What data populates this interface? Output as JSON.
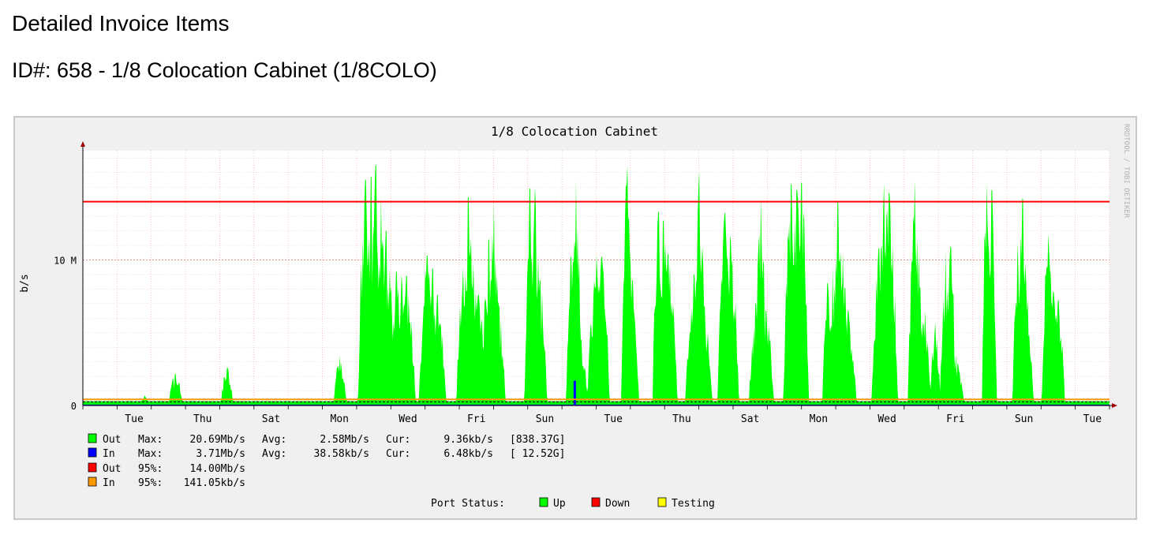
{
  "page": {
    "heading": "Detailed Invoice Items",
    "subheading": "ID#: 658 - 1/8 Colocation Cabinet (1/8COLO)"
  },
  "chart_data": {
    "type": "area",
    "title": "1/8 Colocation Cabinet",
    "ylabel": "b/s",
    "watermark": "RRDTOOL / TOBI OETIKER",
    "y_unit_scale": "M = 1,000,000 b/s",
    "ylim": [
      0,
      17500000
    ],
    "y_ticks": [
      {
        "value": 0,
        "label": "0"
      },
      {
        "value": 10000000,
        "label": "10 M"
      }
    ],
    "x_ticks": [
      "Tue",
      "Thu",
      "Sat",
      "Mon",
      "Wed",
      "Fri",
      "Sun",
      "Tue",
      "Thu",
      "Sat",
      "Mon",
      "Wed",
      "Fri",
      "Sun",
      "Tue"
    ],
    "x_day_count": 30,
    "grid": true,
    "series": [
      {
        "name": "Out",
        "kind": "area",
        "color": "#00ff00",
        "baseline": 300000,
        "peaks": [
          [
            0.005,
            0.2
          ],
          [
            0.06,
            0.7
          ],
          [
            0.09,
            2.2
          ],
          [
            0.14,
            2.6
          ],
          [
            0.25,
            3.4
          ],
          [
            0.275,
            15.5
          ],
          [
            0.28,
            15.7
          ],
          [
            0.285,
            16.5
          ],
          [
            0.29,
            14.4
          ],
          [
            0.295,
            12.0
          ],
          [
            0.305,
            9.2
          ],
          [
            0.31,
            9.0
          ],
          [
            0.315,
            8.9
          ],
          [
            0.335,
            10.3
          ],
          [
            0.34,
            9.4
          ],
          [
            0.345,
            7.6
          ],
          [
            0.37,
            9.5
          ],
          [
            0.375,
            14.3
          ],
          [
            0.38,
            9.8
          ],
          [
            0.385,
            7.6
          ],
          [
            0.395,
            11.4
          ],
          [
            0.4,
            14.0
          ],
          [
            0.405,
            6.7
          ],
          [
            0.435,
            14.9
          ],
          [
            0.44,
            15.0
          ],
          [
            0.445,
            8.6
          ],
          [
            0.475,
            10.2
          ],
          [
            0.48,
            15.4
          ],
          [
            0.485,
            4.5
          ],
          [
            0.5,
            10.3
          ],
          [
            0.505,
            10.2
          ],
          [
            0.53,
            16.5
          ],
          [
            0.535,
            8.6
          ],
          [
            0.56,
            13.3
          ],
          [
            0.565,
            12.7
          ],
          [
            0.57,
            10.4
          ],
          [
            0.595,
            9.0
          ],
          [
            0.6,
            16.1
          ],
          [
            0.605,
            6.8
          ],
          [
            0.625,
            13.2
          ],
          [
            0.63,
            11.7
          ],
          [
            0.655,
            7.0
          ],
          [
            0.66,
            14.3
          ],
          [
            0.665,
            6.5
          ],
          [
            0.69,
            15.2
          ],
          [
            0.695,
            14.8
          ],
          [
            0.7,
            15.3
          ],
          [
            0.725,
            8.4
          ],
          [
            0.73,
            9.5
          ],
          [
            0.735,
            14.0
          ],
          [
            0.74,
            10.5
          ],
          [
            0.745,
            6.5
          ],
          [
            0.775,
            10.8
          ],
          [
            0.78,
            15.3
          ],
          [
            0.785,
            14.6
          ],
          [
            0.81,
            15.5
          ],
          [
            0.815,
            8.1
          ],
          [
            0.82,
            6.5
          ],
          [
            0.83,
            5.7
          ],
          [
            0.84,
            10.6
          ],
          [
            0.845,
            10.9
          ],
          [
            0.85,
            3.5
          ],
          [
            0.88,
            15.3
          ],
          [
            0.885,
            14.8
          ],
          [
            0.91,
            11.2
          ],
          [
            0.915,
            14.2
          ],
          [
            0.92,
            7.3
          ],
          [
            0.94,
            11.8
          ],
          [
            0.945,
            7.8
          ],
          [
            0.95,
            7.3
          ]
        ],
        "legend_stats": {
          "max": "20.69Mb/s",
          "avg": "2.58Mb/s",
          "cur": "9.36kb/s",
          "total": "[838.37G]"
        }
      },
      {
        "name": "In",
        "kind": "area",
        "color": "#0000ff",
        "legend_stats": {
          "max": "3.71Mb/s",
          "avg": "38.58kb/s",
          "cur": "6.48kb/s",
          "total": "[ 12.52G]"
        }
      },
      {
        "name": "Out",
        "kind": "95th-percentile",
        "color": "#ff0000",
        "value": 14000000,
        "label": "14.00Mb/s"
      },
      {
        "name": "In",
        "kind": "95th-percentile",
        "color": "#ff9900",
        "value": 141050,
        "label": "141.05kb/s"
      }
    ],
    "legend": {
      "out_label": "Out",
      "in_label": "In",
      "max_label": "Max:",
      "avg_label": "Avg:",
      "cur_label": "Cur:",
      "pct_label": "95%:",
      "rows": [
        {
          "name": "Out",
          "color": "#00ff00",
          "max": "20.69Mb/s",
          "avg": "2.58Mb/s",
          "cur": "9.36kb/s",
          "total": "[838.37G]"
        },
        {
          "name": "In",
          "color": "#0000ff",
          "max": "3.71Mb/s",
          "avg": "38.58kb/s",
          "cur": "6.48kb/s",
          "total": "[ 12.52G]"
        }
      ],
      "pct_rows": [
        {
          "name": "Out",
          "color": "#ff0000",
          "value": "14.00Mb/s"
        },
        {
          "name": "In",
          "color": "#ff9900",
          "value": "141.05kb/s"
        }
      ]
    },
    "port_status": {
      "label": "Port Status:",
      "items": [
        {
          "label": "Up",
          "color": "#00ff00"
        },
        {
          "label": "Down",
          "color": "#ff0000"
        },
        {
          "label": "Testing",
          "color": "#ffff00"
        }
      ]
    }
  }
}
